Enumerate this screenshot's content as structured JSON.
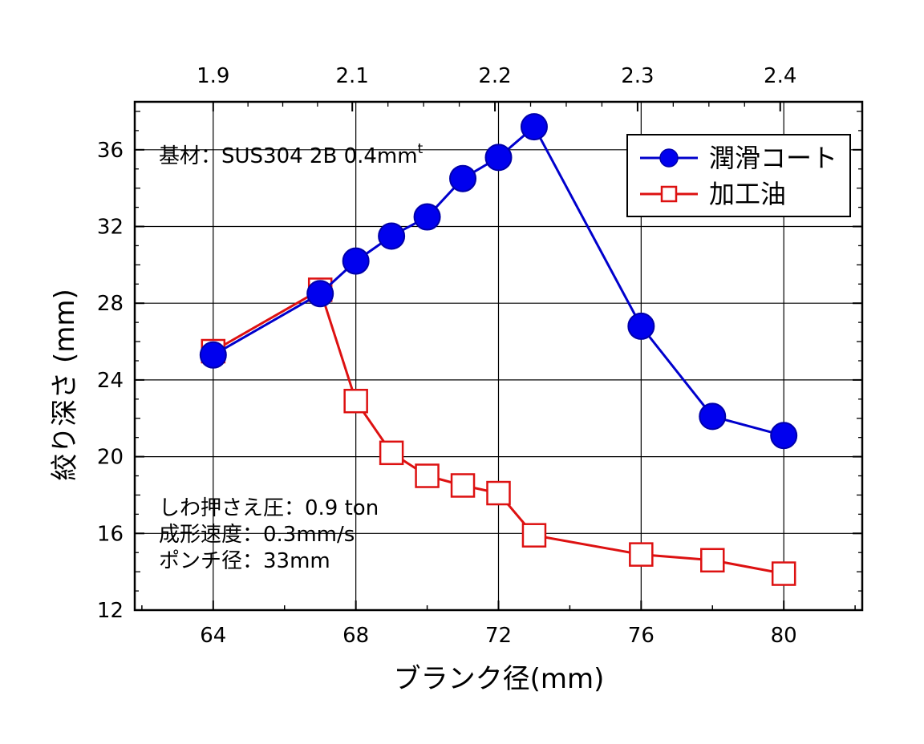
{
  "chart_data": {
    "type": "line",
    "xlabel": "ブランク径(mm)",
    "ylabel": "絞り深さ (mm)",
    "xlim": [
      61.8,
      82.2
    ],
    "ylim": [
      12,
      38.5
    ],
    "x_ticks": [
      64,
      68,
      72,
      76,
      80
    ],
    "y_ticks": [
      12,
      16,
      20,
      24,
      28,
      32,
      36
    ],
    "top_axis": {
      "ticks": [
        {
          "x": 64,
          "label": "1.9"
        },
        {
          "x": 67.9,
          "label": "2.1"
        },
        {
          "x": 71.9,
          "label": "2.2"
        },
        {
          "x": 75.9,
          "label": "2.3"
        },
        {
          "x": 79.9,
          "label": "2.4"
        }
      ]
    },
    "grid": true,
    "legend": "top-right",
    "series": [
      {
        "name": "潤滑コート",
        "color": "#0000cc",
        "marker": "circle-filled",
        "x": [
          64,
          67,
          68,
          69,
          70,
          71,
          72,
          73,
          76,
          78,
          80
        ],
        "y": [
          25.3,
          28.5,
          30.2,
          31.5,
          32.5,
          34.5,
          35.6,
          37.2,
          26.8,
          22.1,
          21.1
        ]
      },
      {
        "name": "加工油",
        "color": "#dd1111",
        "marker": "square-open",
        "x": [
          64,
          67,
          68,
          69,
          70,
          71,
          72,
          73,
          76,
          78,
          80
        ],
        "y": [
          25.5,
          28.7,
          22.9,
          20.2,
          19.0,
          18.5,
          18.1,
          15.9,
          14.9,
          14.6,
          13.9
        ]
      }
    ],
    "annotations": {
      "material": {
        "text": "基材：SUS304 2B 0.4mm",
        "superscript": "t"
      },
      "conditions": [
        "しわ押さえ圧：0.9 ton",
        "成形速度：0.3mm/s",
        "ポンチ径：33mm"
      ]
    }
  }
}
